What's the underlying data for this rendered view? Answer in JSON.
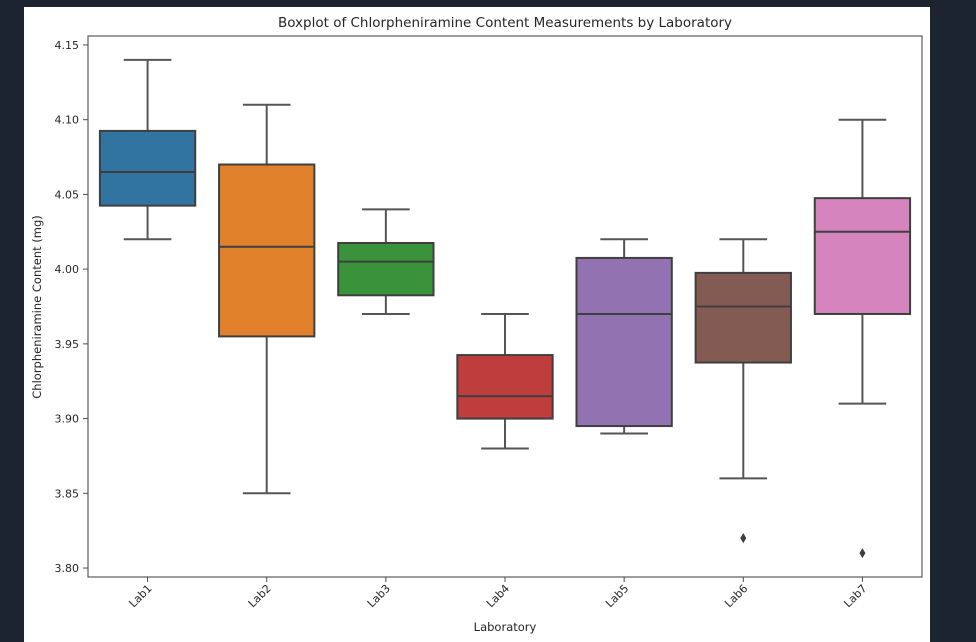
{
  "chart_data": {
    "type": "boxplot",
    "title": "Boxplot of Chlorpheniramine Content Measurements by Laboratory",
    "xlabel": "Laboratory",
    "ylabel": "Chlorpheniramine Content (mg)",
    "ylim": [
      3.794,
      4.156
    ],
    "yticks": [
      "3.80",
      "3.85",
      "3.90",
      "3.95",
      "4.00",
      "4.05",
      "4.10",
      "4.15"
    ],
    "grid": false,
    "categories": [
      "Lab1",
      "Lab2",
      "Lab3",
      "Lab4",
      "Lab5",
      "Lab6",
      "Lab7"
    ],
    "colors": [
      "#3274a1",
      "#e1812c",
      "#3a923a",
      "#c03d3e",
      "#9372b2",
      "#845b53",
      "#d684bd"
    ],
    "boxes": [
      {
        "label": "Lab1",
        "whisker_low": 4.02,
        "q1": 4.0425,
        "median": 4.065,
        "q3": 4.0925,
        "whisker_high": 4.14,
        "outliers": []
      },
      {
        "label": "Lab2",
        "whisker_low": 3.85,
        "q1": 3.955,
        "median": 4.015,
        "q3": 4.07,
        "whisker_high": 4.11,
        "outliers": []
      },
      {
        "label": "Lab3",
        "whisker_low": 3.97,
        "q1": 3.9825,
        "median": 4.005,
        "q3": 4.0175,
        "whisker_high": 4.04,
        "outliers": []
      },
      {
        "label": "Lab4",
        "whisker_low": 3.88,
        "q1": 3.9,
        "median": 3.915,
        "q3": 3.9425,
        "whisker_high": 3.97,
        "outliers": []
      },
      {
        "label": "Lab5",
        "whisker_low": 3.89,
        "q1": 3.895,
        "median": 3.97,
        "q3": 4.0075,
        "whisker_high": 4.02,
        "outliers": []
      },
      {
        "label": "Lab6",
        "whisker_low": 3.86,
        "q1": 3.9375,
        "median": 3.975,
        "q3": 3.9975,
        "whisker_high": 4.02,
        "outliers": [
          3.82
        ]
      },
      {
        "label": "Lab7",
        "whisker_low": 3.91,
        "q1": 3.97,
        "median": 4.025,
        "q3": 4.0475,
        "whisker_high": 4.1,
        "outliers": [
          3.81
        ]
      }
    ]
  }
}
